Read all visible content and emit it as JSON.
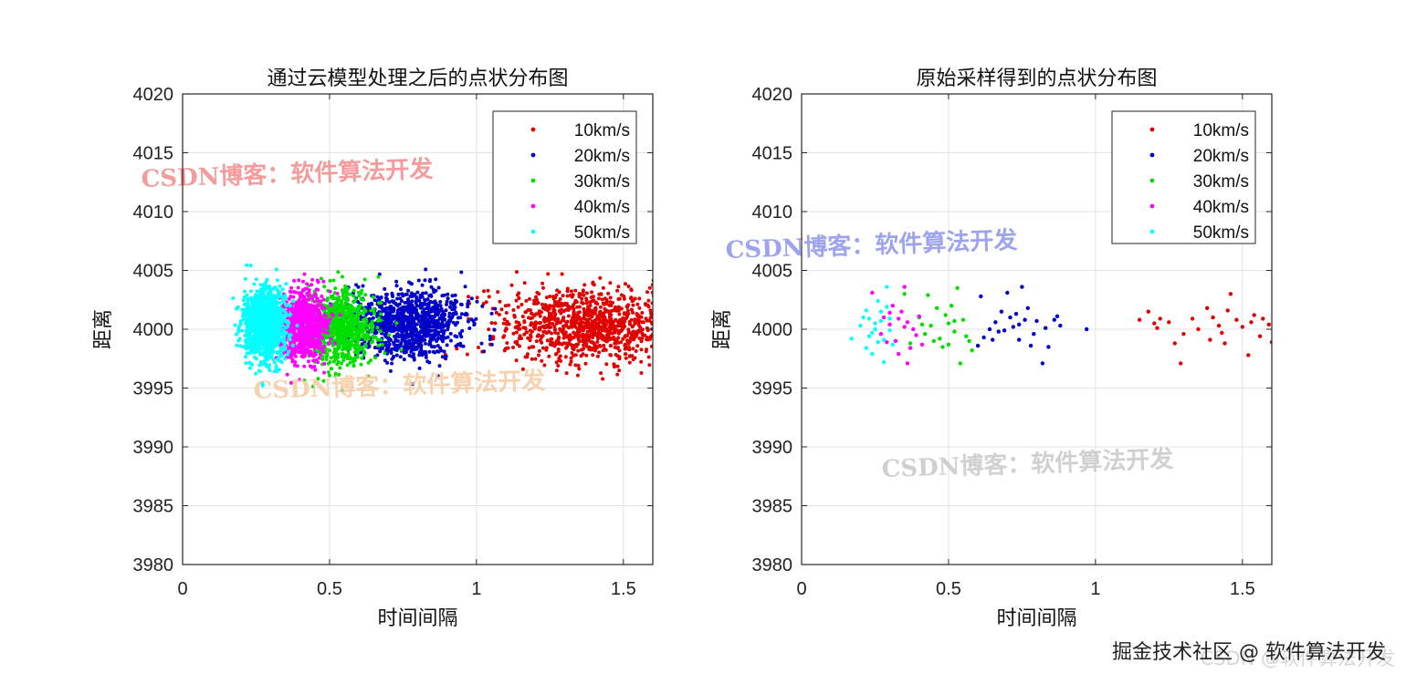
{
  "footer": "掘金技术社区 @ 软件算法开发",
  "footer_ghost": "CSDN @软件算法开发",
  "chart_data": [
    {
      "type": "scatter",
      "title": "通过云模型处理之后的点状分布图",
      "xlabel": "时间间隔",
      "ylabel": "距离",
      "xlim": [
        0,
        1.6
      ],
      "ylim": [
        3980,
        4020
      ],
      "xticks": [
        0,
        0.5,
        1,
        1.5
      ],
      "xtick_labels": [
        "0",
        "0.5",
        "1",
        "1.5"
      ],
      "yticks": [
        3980,
        3985,
        3990,
        3995,
        4000,
        4005,
        4010,
        4015,
        4020
      ],
      "ytick_labels": [
        "3980",
        "3985",
        "3990",
        "3995",
        "4000",
        "4005",
        "4010",
        "4015",
        "4020"
      ],
      "grid": true,
      "legend_position": "top-right",
      "watermarks": [
        {
          "text": "CSDN博客：软件算法开发",
          "color": "#f28b8b"
        },
        {
          "text": "CSDN博客：软件算法开发",
          "color": "#f7c9a0"
        }
      ],
      "series": [
        {
          "name": "10km/s",
          "color": "#e00000",
          "x_center": 1.4,
          "x_spread": 0.16,
          "y_center": 4000.3,
          "y_spread": 1.6,
          "count": 1100
        },
        {
          "name": "20km/s",
          "color": "#0000c8",
          "x_center": 0.77,
          "x_spread": 0.1,
          "y_center": 4000.5,
          "y_spread": 1.5,
          "count": 1000
        },
        {
          "name": "30km/s",
          "color": "#00e000",
          "x_center": 0.53,
          "x_spread": 0.06,
          "y_center": 4000.2,
          "y_spread": 1.5,
          "count": 900
        },
        {
          "name": "40km/s",
          "color": "#ff00ff",
          "x_center": 0.41,
          "x_spread": 0.04,
          "y_center": 4000.4,
          "y_spread": 1.5,
          "count": 800
        },
        {
          "name": "50km/s",
          "color": "#00ffff",
          "x_center": 0.28,
          "x_spread": 0.035,
          "y_center": 4000.4,
          "y_spread": 1.5,
          "count": 1200
        }
      ]
    },
    {
      "type": "scatter",
      "title": "原始采样得到的点状分布图",
      "xlabel": "时间间隔",
      "ylabel": "距离",
      "xlim": [
        0,
        1.6
      ],
      "ylim": [
        3980,
        4020
      ],
      "xticks": [
        0,
        0.5,
        1,
        1.5
      ],
      "xtick_labels": [
        "0",
        "0.5",
        "1",
        "1.5"
      ],
      "yticks": [
        3980,
        3985,
        3990,
        3995,
        4000,
        4005,
        4010,
        4015,
        4020
      ],
      "ytick_labels": [
        "3980",
        "3985",
        "3990",
        "3995",
        "4000",
        "4005",
        "4010",
        "4015",
        "4020"
      ],
      "grid": true,
      "legend_position": "top-right",
      "watermarks": [
        {
          "text": "CSDN博客：软件算法开发",
          "color": "#8d93ea"
        },
        {
          "text": "CSDN博客：软件算法开发",
          "color": "#c8c8c8"
        }
      ],
      "series": [
        {
          "name": "10km/s",
          "color": "#e00000",
          "points": [
            [
              1.15,
              4000.8
            ],
            [
              1.18,
              4001.5
            ],
            [
              1.21,
              4000.1
            ],
            [
              1.22,
              4000.9
            ],
            [
              1.25,
              4000.6
            ],
            [
              1.27,
              3998.8
            ],
            [
              1.29,
              3997.1
            ],
            [
              1.3,
              3999.6
            ],
            [
              1.33,
              4000.9
            ],
            [
              1.38,
              4001.8
            ],
            [
              1.39,
              3999.1
            ],
            [
              1.4,
              4001.0
            ],
            [
              1.42,
              4000.3
            ],
            [
              1.44,
              3998.8
            ],
            [
              1.45,
              4001.6
            ],
            [
              1.46,
              4003.0
            ],
            [
              1.48,
              4000.8
            ],
            [
              1.5,
              4000.2
            ],
            [
              1.52,
              3997.8
            ],
            [
              1.54,
              4001.2
            ],
            [
              1.56,
              3999.4
            ],
            [
              1.57,
              4000.9
            ],
            [
              1.59,
              4000.4
            ],
            [
              1.6,
              3998.9
            ],
            [
              1.2,
              4000.5
            ],
            [
              1.35,
              4000.0
            ],
            [
              1.43,
              3999.7
            ],
            [
              1.53,
              4000.6
            ]
          ]
        },
        {
          "name": "20km/s",
          "color": "#0000c8",
          "points": [
            [
              0.6,
              3998.6
            ],
            [
              0.62,
              3999.3
            ],
            [
              0.64,
              4000.0
            ],
            [
              0.66,
              4000.6
            ],
            [
              0.68,
              4001.5
            ],
            [
              0.69,
              3999.9
            ],
            [
              0.7,
              4003.1
            ],
            [
              0.72,
              4000.2
            ],
            [
              0.73,
              4001.3
            ],
            [
              0.74,
              3999.1
            ],
            [
              0.75,
              4003.6
            ],
            [
              0.76,
              4000.8
            ],
            [
              0.78,
              3998.6
            ],
            [
              0.8,
              4000.7
            ],
            [
              0.82,
              3997.1
            ],
            [
              0.84,
              3998.5
            ],
            [
              0.86,
              4000.8
            ],
            [
              0.88,
              4000.3
            ],
            [
              0.97,
              4000.0
            ],
            [
              0.61,
              4002.8
            ],
            [
              0.67,
              3999.8
            ],
            [
              0.71,
              4001.0
            ],
            [
              0.77,
              4001.8
            ],
            [
              0.79,
              3999.6
            ],
            [
              0.83,
              4000.1
            ],
            [
              0.87,
              4001.1
            ],
            [
              0.65,
              3999.1
            ],
            [
              0.74,
              4000.4
            ]
          ]
        },
        {
          "name": "30km/s",
          "color": "#00e000",
          "points": [
            [
              0.38,
              4000.0
            ],
            [
              0.4,
              4001.0
            ],
            [
              0.42,
              3999.6
            ],
            [
              0.44,
              4000.3
            ],
            [
              0.45,
              3999.0
            ],
            [
              0.46,
              4001.8
            ],
            [
              0.48,
              3998.5
            ],
            [
              0.5,
              4000.5
            ],
            [
              0.51,
              4002.0
            ],
            [
              0.52,
              3999.8
            ],
            [
              0.53,
              4003.5
            ],
            [
              0.54,
              3997.1
            ],
            [
              0.55,
              4000.8
            ],
            [
              0.56,
              3999.4
            ],
            [
              0.58,
              3998.2
            ],
            [
              0.35,
              4003.0
            ],
            [
              0.37,
              3998.8
            ],
            [
              0.43,
              4002.9
            ],
            [
              0.47,
              3999.2
            ],
            [
              0.5,
              3998.7
            ],
            [
              0.52,
              4000.7
            ],
            [
              0.41,
              4000.4
            ],
            [
              0.57,
              3999.0
            ],
            [
              0.49,
              4001.2
            ]
          ]
        },
        {
          "name": "40km/s",
          "color": "#ff00ff",
          "points": [
            [
              0.24,
              4003.1
            ],
            [
              0.28,
              4001.0
            ],
            [
              0.3,
              4000.4
            ],
            [
              0.32,
              3999.0
            ],
            [
              0.33,
              3997.9
            ],
            [
              0.34,
              4001.5
            ],
            [
              0.35,
              4003.6
            ],
            [
              0.36,
              4000.6
            ],
            [
              0.37,
              3998.4
            ],
            [
              0.38,
              4000.0
            ],
            [
              0.39,
              3999.5
            ],
            [
              0.4,
              4001.1
            ],
            [
              0.29,
              3998.9
            ],
            [
              0.31,
              4002.0
            ],
            [
              0.36,
              3997.1
            ],
            [
              0.33,
              4000.9
            ],
            [
              0.27,
              3999.6
            ],
            [
              0.41,
              3998.7
            ],
            [
              0.35,
              4000.2
            ],
            [
              0.3,
              4001.4
            ]
          ]
        },
        {
          "name": "50km/s",
          "color": "#00ffff",
          "points": [
            [
              0.17,
              3999.2
            ],
            [
              0.2,
              4000.3
            ],
            [
              0.22,
              4001.6
            ],
            [
              0.23,
              4000.9
            ],
            [
              0.24,
              3999.7
            ],
            [
              0.25,
              4000.5
            ],
            [
              0.26,
              4002.4
            ],
            [
              0.27,
              4001.5
            ],
            [
              0.28,
              3999.1
            ],
            [
              0.29,
              4003.6
            ],
            [
              0.3,
              4000.9
            ],
            [
              0.31,
              3998.7
            ],
            [
              0.22,
              3998.4
            ],
            [
              0.24,
              3997.9
            ],
            [
              0.26,
              3998.9
            ],
            [
              0.28,
              3997.2
            ],
            [
              0.21,
              4001.0
            ],
            [
              0.25,
              4000.0
            ],
            [
              0.27,
              4000.7
            ],
            [
              0.23,
              3999.4
            ],
            [
              0.29,
              4001.9
            ],
            [
              0.3,
              3999.9
            ]
          ]
        }
      ]
    }
  ]
}
